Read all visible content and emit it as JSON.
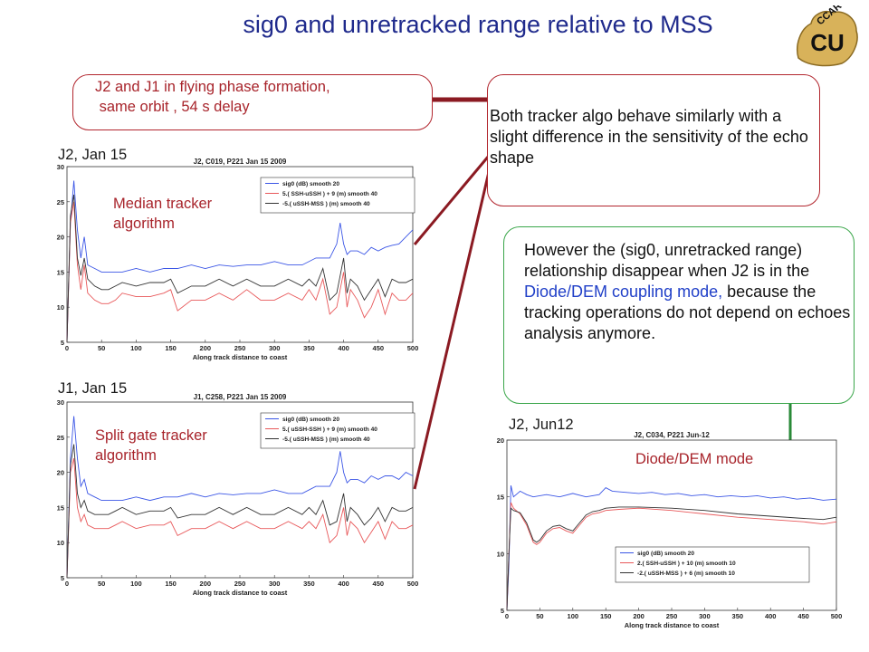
{
  "title": "sig0 and unretracked range relative to MSS",
  "logo": {
    "letters": "CU",
    "arc_text": "CCAR",
    "accent": "#d8b25a",
    "primary": "#111111"
  },
  "callouts": {
    "formation": "J2 and J1 in flying phase formation,\n same orbit , 54 s delay",
    "similar": "Both tracker algo  behave similarly with a slight difference in the sensitivity of the echo shape",
    "however_pre": "However the (sig0, unretracked range)  relationship disappear when   J2 is in the ",
    "however_blue": "Diode/DEM coupling mode,",
    "however_post": " because the tracking operations do not depend on echoes analysis anymore."
  },
  "labels": {
    "j2_jan": "J2,  Jan 15",
    "j1_jan": "J1,  Jan 15",
    "j2_jun": "J2,  Jun12",
    "median": "Median tracker algorithm",
    "split": "Split gate  tracker algorithm",
    "diode": "Diode/DEM mode"
  },
  "colors": {
    "box_red": "#b2262e",
    "box_green": "#3aa64a",
    "connector": "#8b1a22",
    "sig0": "#3b56e6",
    "range": "#e8585a",
    "diff": "#333333"
  },
  "chart_data": [
    {
      "type": "line",
      "title": "J2, C019,  P221 Jan 15 2009",
      "xlabel": "Along track distance to coast",
      "xlim": [
        0,
        500
      ],
      "ylim": [
        5,
        30
      ],
      "xticks": [
        0,
        50,
        100,
        150,
        200,
        250,
        300,
        350,
        400,
        450,
        500
      ],
      "yticks": [
        5,
        10,
        15,
        20,
        25,
        30
      ],
      "legend_position": "top-right",
      "series": [
        {
          "name": "sig0 (dB)  smooth 20",
          "color": "#3b56e6",
          "x": [
            0,
            5,
            10,
            15,
            20,
            25,
            30,
            40,
            50,
            60,
            80,
            100,
            120,
            140,
            160,
            180,
            200,
            220,
            240,
            260,
            280,
            300,
            320,
            340,
            360,
            380,
            390,
            395,
            400,
            405,
            410,
            420,
            430,
            440,
            450,
            460,
            470,
            480,
            490,
            500
          ],
          "y": [
            5,
            22,
            28,
            21,
            17,
            20,
            16,
            15.5,
            15,
            15,
            15,
            15.5,
            15,
            15.5,
            15.5,
            16,
            15.5,
            16,
            15.8,
            16,
            16,
            16.5,
            16,
            16,
            17,
            17,
            19,
            22,
            19,
            17.5,
            18,
            18,
            17.5,
            18.5,
            18,
            18.5,
            18.8,
            19,
            20,
            21
          ]
        },
        {
          "name": "5.( SSH-uSSH ) + 9  (m)  smooth 40",
          "color": "#e8585a",
          "x": [
            0,
            5,
            10,
            15,
            20,
            25,
            30,
            40,
            50,
            60,
            70,
            80,
            100,
            120,
            140,
            150,
            160,
            180,
            200,
            220,
            240,
            260,
            280,
            300,
            320,
            340,
            350,
            360,
            370,
            380,
            390,
            400,
            405,
            410,
            420,
            430,
            440,
            450,
            460,
            470,
            480,
            490,
            500
          ],
          "y": [
            5,
            22,
            25,
            16,
            12.5,
            16,
            12,
            11,
            10.5,
            10.5,
            11,
            12,
            11.5,
            11.5,
            12,
            12.5,
            9.5,
            11,
            11,
            12,
            11,
            12.5,
            11,
            11,
            12,
            11,
            12.5,
            11,
            14,
            9,
            10,
            15,
            10,
            12.5,
            11,
            8.5,
            10,
            12.5,
            9,
            12,
            11,
            11,
            12
          ]
        },
        {
          "name": "-5.( uSSH-MSS ) (m)  smooth 40",
          "color": "#333333",
          "x": [
            0,
            5,
            10,
            15,
            20,
            25,
            30,
            40,
            50,
            60,
            70,
            80,
            100,
            120,
            140,
            150,
            160,
            180,
            200,
            220,
            240,
            260,
            280,
            300,
            320,
            340,
            350,
            360,
            370,
            380,
            390,
            400,
            405,
            410,
            420,
            430,
            440,
            450,
            460,
            470,
            480,
            490,
            500
          ],
          "y": [
            5,
            23,
            26,
            17,
            14.5,
            17,
            14,
            13,
            12.5,
            12.5,
            13,
            13.5,
            13,
            13.5,
            13.5,
            14,
            12,
            13,
            13,
            14,
            13,
            14,
            13,
            13,
            14,
            13,
            14,
            13,
            15.5,
            11,
            12,
            17,
            12,
            14,
            13,
            11,
            12.5,
            14,
            11.5,
            14,
            13.5,
            13.5,
            14
          ]
        }
      ]
    },
    {
      "type": "line",
      "title": "J1, C258,  P221 Jan 15 2009",
      "xlabel": "Along track distance to coast",
      "xlim": [
        0,
        500
      ],
      "ylim": [
        5,
        30
      ],
      "xticks": [
        0,
        50,
        100,
        150,
        200,
        250,
        300,
        350,
        400,
        450,
        500
      ],
      "yticks": [
        5,
        10,
        15,
        20,
        25,
        30
      ],
      "legend_position": "top-right",
      "series": [
        {
          "name": "sig0 (dB)  smooth 20",
          "color": "#3b56e6",
          "x": [
            0,
            5,
            10,
            15,
            20,
            25,
            30,
            40,
            50,
            60,
            80,
            100,
            120,
            140,
            160,
            180,
            200,
            220,
            240,
            260,
            280,
            300,
            320,
            340,
            360,
            380,
            390,
            395,
            400,
            405,
            410,
            420,
            430,
            440,
            450,
            460,
            470,
            480,
            490,
            500
          ],
          "y": [
            5,
            22,
            28,
            22,
            18,
            19,
            17,
            16.5,
            16,
            16,
            16,
            16.5,
            16,
            16.5,
            16.5,
            17,
            16.5,
            17,
            16.8,
            17,
            17,
            17.5,
            17,
            17,
            18,
            18,
            20,
            23,
            20,
            18.5,
            19,
            19,
            18.5,
            19.5,
            19,
            19.5,
            19.5,
            19,
            20,
            19.5
          ]
        },
        {
          "name": "5.( uSSH-SSH ) + 9  (m)  smooth 40",
          "color": "#e8585a",
          "x": [
            0,
            5,
            10,
            15,
            20,
            25,
            30,
            40,
            50,
            60,
            70,
            80,
            100,
            120,
            140,
            150,
            160,
            180,
            200,
            220,
            240,
            260,
            280,
            300,
            320,
            340,
            350,
            360,
            370,
            380,
            390,
            400,
            405,
            410,
            420,
            430,
            440,
            450,
            460,
            470,
            480,
            490,
            500
          ],
          "y": [
            5,
            20,
            22,
            15,
            13,
            14,
            12.5,
            12,
            12,
            12,
            12.5,
            13,
            12,
            12.5,
            12.5,
            13,
            11,
            12,
            12,
            13,
            12,
            13,
            12,
            12,
            13,
            12,
            13,
            12,
            14,
            10,
            11,
            15,
            11,
            13,
            12,
            10,
            11.5,
            13,
            10.5,
            13,
            12,
            12,
            12.5
          ]
        },
        {
          "name": "-5.( uSSH-MSS ) (m)  smooth 40",
          "color": "#333333",
          "x": [
            0,
            5,
            10,
            15,
            20,
            25,
            30,
            40,
            50,
            60,
            70,
            80,
            100,
            120,
            140,
            150,
            160,
            180,
            200,
            220,
            240,
            260,
            280,
            300,
            320,
            340,
            350,
            360,
            370,
            380,
            390,
            400,
            405,
            410,
            420,
            430,
            440,
            450,
            460,
            470,
            480,
            490,
            500
          ],
          "y": [
            5,
            21,
            24,
            17,
            15,
            16,
            14.5,
            14,
            14,
            14,
            14.5,
            15,
            14,
            14.5,
            14.5,
            15,
            13.5,
            14,
            14,
            15,
            14,
            15,
            14,
            14,
            15,
            14,
            15,
            14,
            16,
            12.5,
            13,
            17,
            13,
            15,
            14,
            12.5,
            13.5,
            15,
            13,
            15,
            14.5,
            14.5,
            15
          ]
        }
      ]
    },
    {
      "type": "line",
      "title": "J2, C034,  P221 Jun-12",
      "xlabel": "Along track distance to coast",
      "xlim": [
        0,
        500
      ],
      "ylim": [
        5,
        20
      ],
      "xticks": [
        0,
        50,
        100,
        150,
        200,
        250,
        300,
        350,
        400,
        450,
        500
      ],
      "yticks": [
        5,
        10,
        15,
        20
      ],
      "legend_position": "bottom-left",
      "series": [
        {
          "name": "sig0 (dB)  smooth 20",
          "color": "#3b56e6",
          "x": [
            0,
            3,
            6,
            10,
            20,
            30,
            40,
            60,
            80,
            100,
            120,
            140,
            150,
            160,
            180,
            200,
            220,
            240,
            260,
            280,
            300,
            320,
            340,
            360,
            380,
            400,
            420,
            440,
            460,
            480,
            500
          ],
          "y": [
            5,
            9,
            16,
            15,
            15.5,
            15.2,
            15,
            15.2,
            15,
            15.3,
            15,
            15.2,
            15.8,
            15.5,
            15.4,
            15.3,
            15.4,
            15.2,
            15.3,
            15.1,
            15.2,
            15,
            15.1,
            15,
            15.1,
            14.9,
            15,
            14.8,
            14.9,
            14.7,
            14.8
          ]
        },
        {
          "name": "2.( SSH-uSSH ) + 10  (m)  smooth 10",
          "color": "#e8585a",
          "x": [
            0,
            3,
            6,
            10,
            20,
            30,
            40,
            45,
            50,
            60,
            70,
            80,
            90,
            100,
            110,
            120,
            130,
            140,
            150,
            170,
            200,
            250,
            300,
            350,
            400,
            450,
            480,
            500
          ],
          "y": [
            5,
            10,
            14.5,
            14,
            13.5,
            12.5,
            11,
            10.8,
            11,
            11.8,
            12.2,
            12.3,
            12,
            11.8,
            12.5,
            13.2,
            13.5,
            13.6,
            13.8,
            13.9,
            14,
            13.8,
            13.5,
            13.2,
            13.0,
            12.8,
            12.6,
            12.8
          ]
        },
        {
          "name": "-2.( uSSH-MSS ) + 6 (m)  smooth 10",
          "color": "#333333",
          "x": [
            0,
            3,
            6,
            10,
            20,
            30,
            40,
            45,
            50,
            60,
            70,
            80,
            90,
            100,
            110,
            120,
            130,
            140,
            150,
            170,
            200,
            250,
            300,
            350,
            400,
            450,
            480,
            500
          ],
          "y": [
            5,
            10,
            14,
            13.8,
            13.6,
            12.7,
            11.2,
            11,
            11.2,
            12,
            12.4,
            12.5,
            12.2,
            12,
            12.7,
            13.4,
            13.7,
            13.8,
            14,
            14.1,
            14.1,
            14,
            13.8,
            13.5,
            13.3,
            13.1,
            13,
            13.2
          ]
        }
      ]
    }
  ]
}
